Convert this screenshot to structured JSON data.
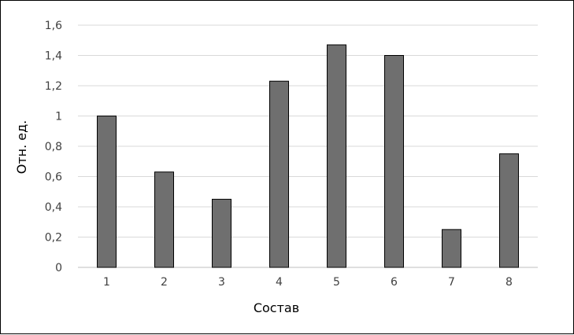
{
  "chart_data": {
    "type": "bar",
    "categories": [
      "1",
      "2",
      "3",
      "4",
      "5",
      "6",
      "7",
      "8"
    ],
    "values": [
      1.0,
      0.63,
      0.45,
      1.23,
      1.47,
      1.4,
      0.25,
      0.75
    ],
    "xlabel": "Состав",
    "ylabel": "Отн. ед.",
    "ylim": [
      0,
      1.6
    ],
    "yticks": [
      "0",
      "0,2",
      "0,4",
      "0,6",
      "0,8",
      "1",
      "1,2",
      "1,4",
      "1,6"
    ],
    "grid": true,
    "colors": {
      "bar": "#6f6f6f",
      "bar_edge": "#000000",
      "grid": "#d9d9d9"
    }
  }
}
